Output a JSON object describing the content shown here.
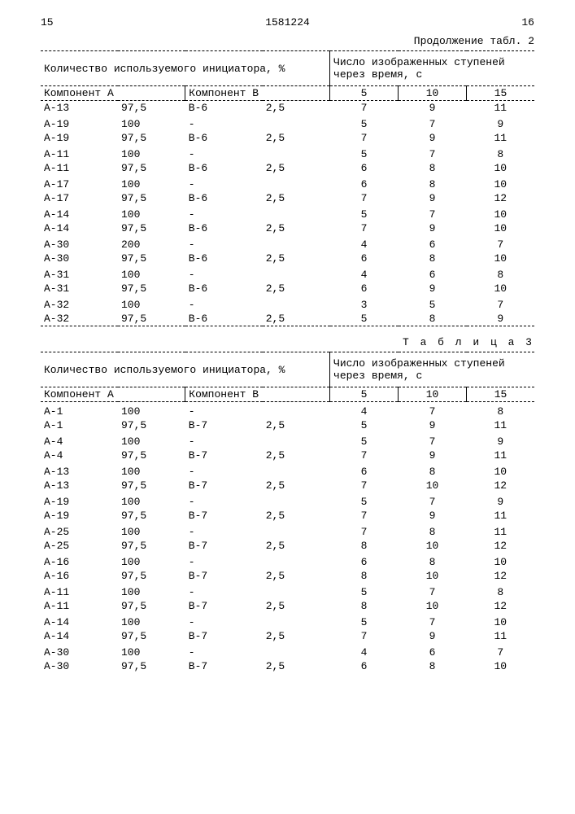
{
  "header": {
    "left_page": "15",
    "doc_number": "1581224",
    "right_page": "16"
  },
  "table2": {
    "continuation": "Продолжение табл. 2",
    "hdr_left": "Количество используемого инициатора, %",
    "hdr_right": "Число изображенных ступеней через время, с",
    "col_a": "Компонент  А",
    "col_b": "Компонент В",
    "c5": "5",
    "c10": "10",
    "c15": "15",
    "rows": [
      {
        "a": "А-13",
        "va": "97,5",
        "b": "В-6",
        "vb": "2,5",
        "v5": "7",
        "v10": "9",
        "v15": "11",
        "gap": false
      },
      {
        "a": "А-19",
        "va": "100",
        "b": "-",
        "vb": "",
        "v5": "5",
        "v10": "7",
        "v15": "9",
        "gap": true
      },
      {
        "a": "А-19",
        "va": "97,5",
        "b": "В-6",
        "vb": "2,5",
        "v5": "7",
        "v10": "9",
        "v15": "11",
        "gap": false
      },
      {
        "a": "А-11",
        "va": "100",
        "b": "-",
        "vb": "",
        "v5": "5",
        "v10": "7",
        "v15": "8",
        "gap": true
      },
      {
        "a": "А-11",
        "va": "97,5",
        "b": "В-6",
        "vb": "2,5",
        "v5": "6",
        "v10": "8",
        "v15": "10",
        "gap": false
      },
      {
        "a": "А-17",
        "va": "100",
        "b": "-",
        "vb": "",
        "v5": "6",
        "v10": "8",
        "v15": "10",
        "gap": true
      },
      {
        "a": "А-17",
        "va": "97,5",
        "b": "В-6",
        "vb": "2,5",
        "v5": "7",
        "v10": "9",
        "v15": "12",
        "gap": false
      },
      {
        "a": "А-14",
        "va": "100",
        "b": "-",
        "vb": "",
        "v5": "5",
        "v10": "7",
        "v15": "10",
        "gap": true
      },
      {
        "a": "А-14",
        "va": "97,5",
        "b": "В-6",
        "vb": "2,5",
        "v5": "7",
        "v10": "9",
        "v15": "10",
        "gap": false
      },
      {
        "a": "А-30",
        "va": "200",
        "b": "-",
        "vb": "",
        "v5": "4",
        "v10": "6",
        "v15": "7",
        "gap": true
      },
      {
        "a": "А-30",
        "va": "97,5",
        "b": "В-6",
        "vb": "2,5",
        "v5": "6",
        "v10": "8",
        "v15": "10",
        "gap": false
      },
      {
        "a": "А-31",
        "va": "100",
        "b": "-",
        "vb": "",
        "v5": "4",
        "v10": "6",
        "v15": "8",
        "gap": true
      },
      {
        "a": "А-31",
        "va": "97,5",
        "b": "В-6",
        "vb": "2,5",
        "v5": "6",
        "v10": "9",
        "v15": "10",
        "gap": false
      },
      {
        "a": "А-32",
        "va": "100",
        "b": "-",
        "vb": "",
        "v5": "3",
        "v10": "5",
        "v15": "7",
        "gap": true
      },
      {
        "a": "А-32",
        "va": "97,5",
        "b": "В-6",
        "vb": "2,5",
        "v5": "5",
        "v10": "8",
        "v15": "9",
        "gap": false
      }
    ]
  },
  "table3": {
    "caption": "Т а б л и ц а  3",
    "hdr_left": "Количество используемого инициатора, %",
    "hdr_right": "Число изображенных ступеней через время,  с",
    "col_a": "Компонент А",
    "col_b": "Компонент В",
    "c5": "5",
    "c10": "10",
    "c15": "15",
    "rows": [
      {
        "a": "А-1",
        "va": "100",
        "b": "-",
        "vb": "",
        "v5": "4",
        "v10": "7",
        "v15": "8",
        "gap": true
      },
      {
        "a": "А-1",
        "va": "97,5",
        "b": "В-7",
        "vb": "2,5",
        "v5": "5",
        "v10": "9",
        "v15": "11",
        "gap": false
      },
      {
        "a": "А-4",
        "va": "100",
        "b": "-",
        "vb": "",
        "v5": "5",
        "v10": "7",
        "v15": "9",
        "gap": true
      },
      {
        "a": "А-4",
        "va": "97,5",
        "b": "В-7",
        "vb": "2,5",
        "v5": "7",
        "v10": "9",
        "v15": "11",
        "gap": false
      },
      {
        "a": "А-13",
        "va": "100",
        "b": "-",
        "vb": "",
        "v5": "6",
        "v10": "8",
        "v15": "10",
        "gap": true
      },
      {
        "a": "А-13",
        "va": "97,5",
        "b": "В-7",
        "vb": "2,5",
        "v5": "7",
        "v10": "10",
        "v15": "12",
        "gap": false
      },
      {
        "a": "А-19",
        "va": "100",
        "b": "-",
        "vb": "",
        "v5": "5",
        "v10": "7",
        "v15": "9",
        "gap": true
      },
      {
        "a": "А-19",
        "va": "97,5",
        "b": "В-7",
        "vb": "2,5",
        "v5": "7",
        "v10": "9",
        "v15": "11",
        "gap": false
      },
      {
        "a": "А-25",
        "va": "100",
        "b": "-",
        "vb": "",
        "v5": "7",
        "v10": "8",
        "v15": "11",
        "gap": true
      },
      {
        "a": "А-25",
        "va": "97,5",
        "b": "В-7",
        "vb": "2,5",
        "v5": "8",
        "v10": "10",
        "v15": "12",
        "gap": false
      },
      {
        "a": "А-16",
        "va": "100",
        "b": "-",
        "vb": "",
        "v5": "6",
        "v10": "8",
        "v15": "10",
        "gap": true
      },
      {
        "a": "А-16",
        "va": "97,5",
        "b": "В-7",
        "vb": "2,5",
        "v5": "8",
        "v10": "10",
        "v15": "12",
        "gap": false
      },
      {
        "a": "А-11",
        "va": "100",
        "b": "-",
        "vb": "",
        "v5": "5",
        "v10": "7",
        "v15": "8",
        "gap": true
      },
      {
        "a": "А-11",
        "va": "97,5",
        "b": "В-7",
        "vb": "2,5",
        "v5": "8",
        "v10": "10",
        "v15": "12",
        "gap": false
      },
      {
        "a": "А-14",
        "va": "100",
        "b": "-",
        "vb": "",
        "v5": "5",
        "v10": "7",
        "v15": "10",
        "gap": true
      },
      {
        "a": "А-14",
        "va": "97,5",
        "b": "В-7",
        "vb": "2,5",
        "v5": "7",
        "v10": "9",
        "v15": "11",
        "gap": false
      },
      {
        "a": "А-30",
        "va": "100",
        "b": "-",
        "vb": "",
        "v5": "4",
        "v10": "6",
        "v15": "7",
        "gap": true
      },
      {
        "a": "А-30",
        "va": "97,5",
        "b": "В-7",
        "vb": "2,5",
        "v5": "6",
        "v10": "8",
        "v15": "10",
        "gap": false
      }
    ]
  }
}
